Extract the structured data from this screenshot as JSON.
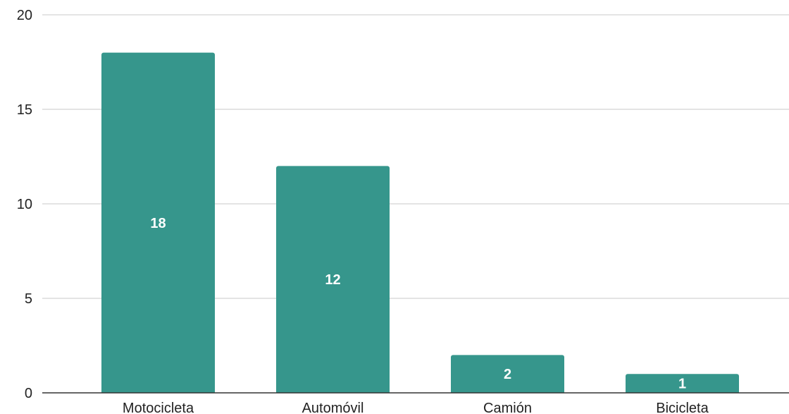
{
  "chart_data": {
    "type": "bar",
    "title": "",
    "xlabel": "",
    "ylabel": "",
    "categories": [
      "Motocicleta",
      "Automóvil",
      "Camión",
      "Bicicleta"
    ],
    "values": [
      18,
      12,
      2,
      1
    ],
    "data_labels": [
      "18",
      "12",
      "2",
      "1"
    ],
    "ylim": [
      0,
      20
    ],
    "y_ticks": [
      0,
      5,
      10,
      15,
      20
    ],
    "y_tick_labels": [
      "0",
      "5",
      "10",
      "15",
      "20"
    ],
    "grid": true,
    "legend": "none",
    "colors": {
      "bar": "#36968c",
      "grid": "#c8c8c8",
      "axis": "#333333",
      "data_label": "#ffffff",
      "text": "#222222"
    }
  }
}
